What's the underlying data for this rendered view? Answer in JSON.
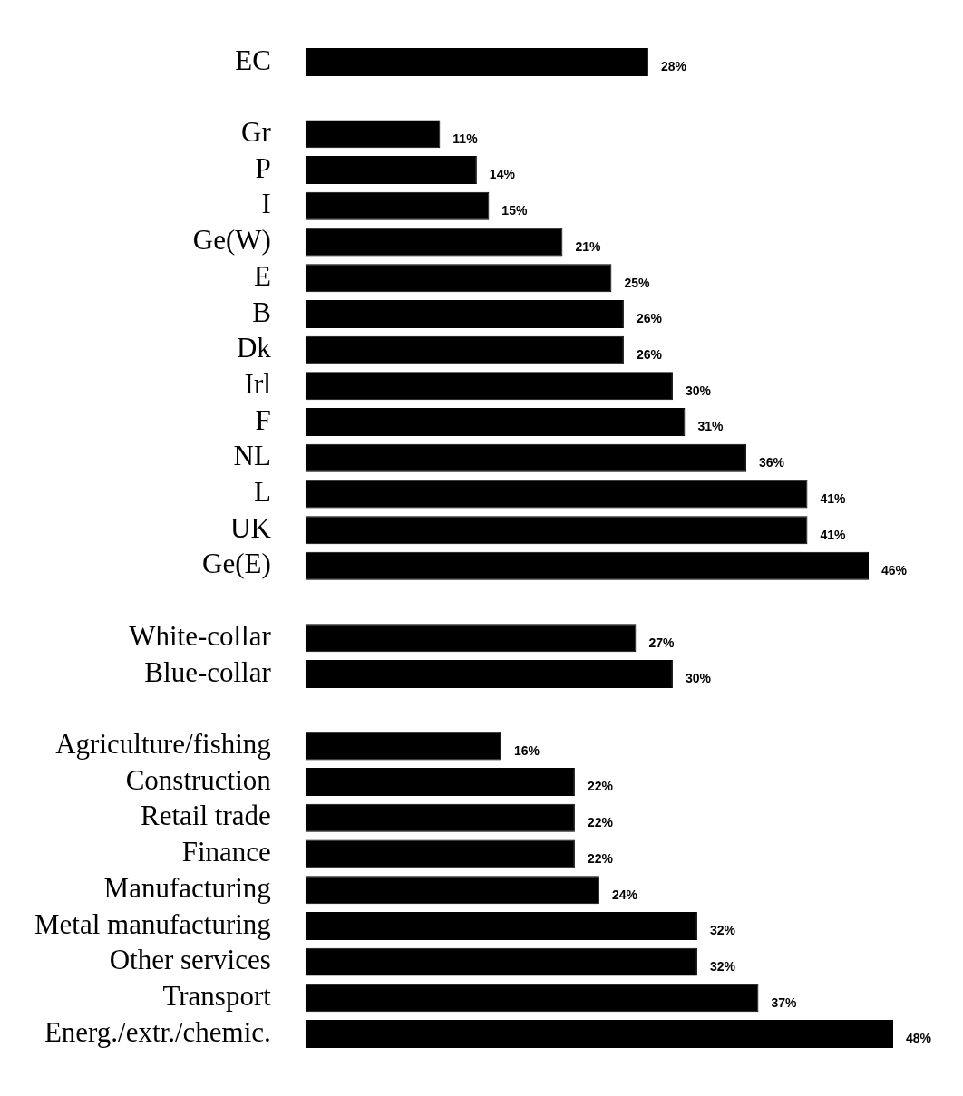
{
  "chart_data": {
    "type": "bar",
    "orientation": "horizontal",
    "color": "#000000",
    "categories": [
      "EC",
      null,
      "Gr",
      "P",
      "I",
      "Ge(W)",
      "E",
      "B",
      "Dk",
      "Irl",
      "F",
      "NL",
      "L",
      "UK",
      "Ge(E)",
      null,
      "White-collar",
      "Blue-collar",
      null,
      "Agriculture/fishing",
      "Construction",
      "Retail trade",
      "Finance",
      "Manufacturing",
      "Metal manufacturing",
      "Other services",
      "Transport",
      "Energ./extr./chemic."
    ],
    "values": [
      28,
      null,
      11,
      14,
      15,
      21,
      25,
      26,
      26,
      30,
      31,
      36,
      41,
      41,
      46,
      null,
      27,
      30,
      null,
      16,
      22,
      22,
      22,
      24,
      32,
      32,
      37,
      48
    ],
    "value_labels": [
      "28%",
      null,
      "11%",
      "14%",
      "15%",
      "21%",
      "25%",
      "26%",
      "26%",
      "30%",
      "31%",
      "36%",
      "41%",
      "41%",
      "46%",
      null,
      "27%",
      "30%",
      null,
      "16%",
      "22%",
      "22%",
      "22%",
      "24%",
      "32%",
      "32%",
      "37%",
      "48%"
    ]
  }
}
